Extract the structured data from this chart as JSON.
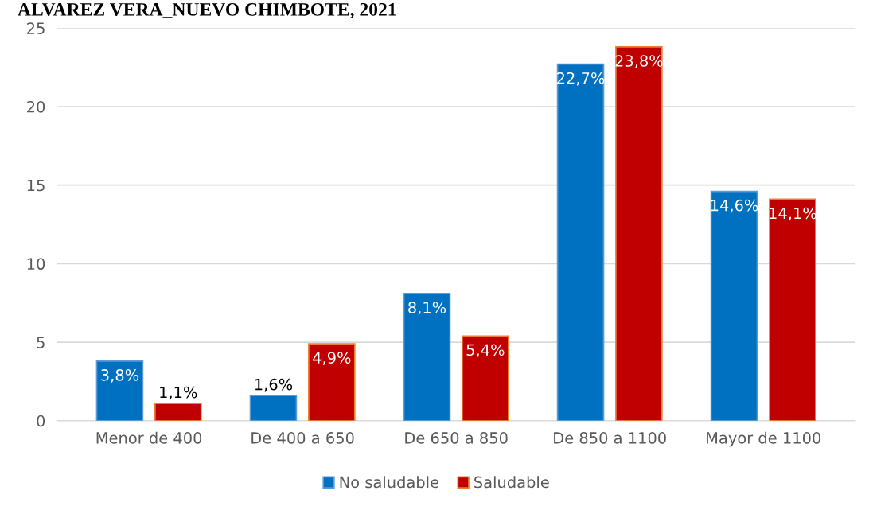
{
  "chart_data": {
    "type": "bar",
    "title": "ALVAREZ VERA_NUEVO CHIMBOTE, 2021",
    "categories": [
      "Menor de 400",
      "De 400 a 650",
      "De 650 a 850",
      "De 850 a 1100",
      "Mayor de 1100"
    ],
    "series": [
      {
        "name": "No saludable",
        "color": "#0070c0",
        "values": [
          3.8,
          1.6,
          8.1,
          22.7,
          14.6
        ],
        "value_labels": [
          "3,8%",
          "1,6%",
          "8,1%",
          "22,7%",
          "14,6%"
        ]
      },
      {
        "name": "Saludable",
        "color": "#c00000",
        "values": [
          1.1,
          4.9,
          5.4,
          23.8,
          14.1
        ],
        "value_labels": [
          "1,1%",
          "4,9%",
          "5,4%",
          "23,8%",
          "14,1%"
        ]
      }
    ],
    "ylim": [
      0,
      25
    ],
    "yticks": [
      0,
      5,
      10,
      15,
      20,
      25
    ],
    "grid": "y",
    "legend": "bottom"
  }
}
